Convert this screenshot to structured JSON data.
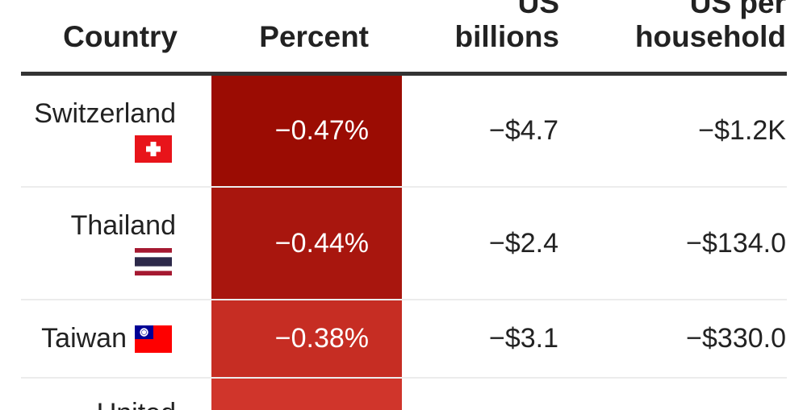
{
  "table": {
    "headers": {
      "country": "Country",
      "percent": "Percent",
      "billions_line1": "US",
      "billions_line2": "billions",
      "household_line1": "US per",
      "household_line2": "household"
    },
    "rows": [
      {
        "country": "Switzerland",
        "flag_icon": "switzerland-flag-icon",
        "percent": "−0.47%",
        "percent_color": "#9b0c03",
        "billions": "−$4.7",
        "per_household": "−$1.2K"
      },
      {
        "country": "Thailand",
        "flag_icon": "thailand-flag-icon",
        "percent": "−0.44%",
        "percent_color": "#a8160e",
        "billions": "−$2.4",
        "per_household": "−$134.0"
      },
      {
        "country": "Taiwan",
        "flag_icon": "taiwan-flag-icon",
        "percent": "−0.38%",
        "percent_color": "#c62d23",
        "billions": "−$3.1",
        "per_household": "−$330.0"
      },
      {
        "country": "United",
        "flag_icon": "",
        "percent": "",
        "percent_color": "#d0352b",
        "billions": "",
        "per_household": ""
      }
    ]
  }
}
